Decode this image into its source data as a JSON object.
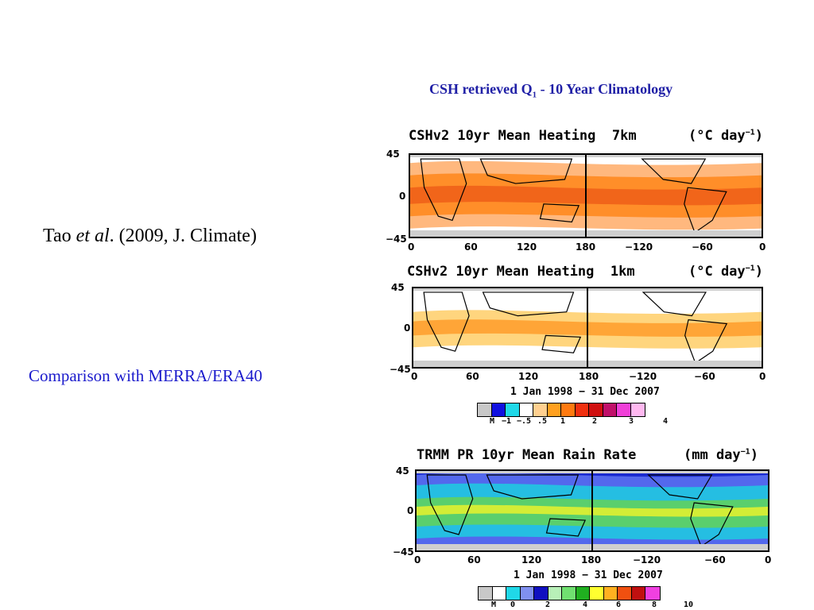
{
  "slide": {
    "title_main": "CSH retrieved Q",
    "title_sub": "1",
    "title_rest": " - 10 Year Climatology",
    "citation_author": "Tao ",
    "citation_etal": "et al",
    "citation_rest": ". (2009, J. Climate)",
    "comparison": "Comparison with MERRA/ERA40"
  },
  "panels": [
    {
      "title": "CSHv2 10yr Mean Heating  7km",
      "units": "(°C day",
      "units_exp": "−1",
      "units_close": ")",
      "lat_ticks": [
        "45",
        "0",
        "−45"
      ],
      "lon_ticks": [
        "0",
        "60",
        "120",
        "180",
        "−120",
        "−60",
        "0"
      ],
      "palette": "heating"
    },
    {
      "title": "CSHv2 10yr Mean Heating  1km",
      "units": "(°C day",
      "units_exp": "−1",
      "units_close": ")",
      "lat_ticks": [
        "45",
        "0",
        "−45"
      ],
      "lon_ticks": [
        "0",
        "60",
        "120",
        "180",
        "−120",
        "−60",
        "0"
      ],
      "date_range": "1 Jan 1998 − 31 Dec 2007",
      "palette": "heating"
    },
    {
      "title": "TRMM PR 10yr Mean Rain Rate",
      "units": "(mm day",
      "units_exp": "−1",
      "units_close": ")",
      "lat_ticks": [
        "45",
        "0",
        "−45"
      ],
      "lon_ticks": [
        "0",
        "60",
        "120",
        "180",
        "−120",
        "−60",
        "0"
      ],
      "date_range": "1 Jan 1998 − 31 Dec 2007",
      "palette": "rain"
    }
  ],
  "colorbars": {
    "heating": {
      "colors": [
        "#c8c8c8",
        "#1010e0",
        "#20d8e8",
        "#ffffff",
        "#ffd090",
        "#ffa020",
        "#ff7a10",
        "#f03010",
        "#d01010",
        "#c0106a",
        "#f040d8",
        "#ffb8f0"
      ],
      "labels": [
        "M",
        "−1",
        "−.5",
        ".5",
        "1",
        "2",
        "3",
        "4"
      ]
    },
    "rain": {
      "colors": [
        "#c8c8c8",
        "#ffffff",
        "#20d8e8",
        "#8090f0",
        "#1010c0",
        "#b8f0b8",
        "#70e070",
        "#20b020",
        "#ffff30",
        "#ffb020",
        "#f05010",
        "#c01010",
        "#f040e0"
      ],
      "labels": [
        "M",
        "0",
        "2",
        "4",
        "6",
        "8",
        "10"
      ]
    }
  }
}
